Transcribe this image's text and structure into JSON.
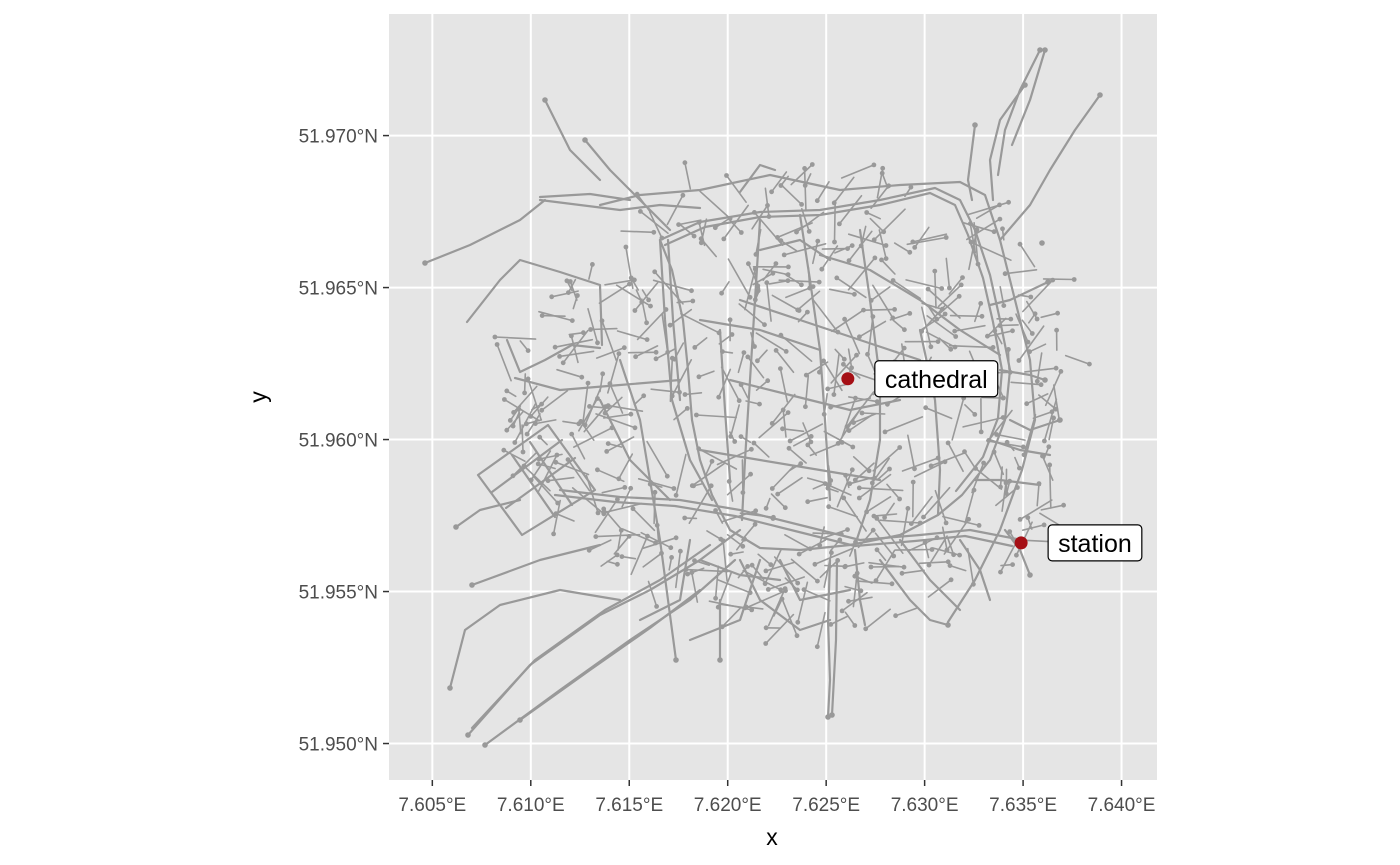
{
  "axes": {
    "x_title": "x",
    "y_title": "y",
    "x_ticks": [
      {
        "value": 7.605,
        "label": "7.605°E"
      },
      {
        "value": 7.61,
        "label": "7.610°E"
      },
      {
        "value": 7.615,
        "label": "7.615°E"
      },
      {
        "value": 7.62,
        "label": "7.620°E"
      },
      {
        "value": 7.625,
        "label": "7.625°E"
      },
      {
        "value": 7.63,
        "label": "7.630°E"
      },
      {
        "value": 7.635,
        "label": "7.635°E"
      },
      {
        "value": 7.64,
        "label": "7.640°E"
      }
    ],
    "y_ticks": [
      {
        "value": 51.95,
        "label": "51.950°N"
      },
      {
        "value": 51.955,
        "label": "51.955°N"
      },
      {
        "value": 51.96,
        "label": "51.960°N"
      },
      {
        "value": 51.965,
        "label": "51.965°N"
      },
      {
        "value": 51.97,
        "label": "51.970°N"
      }
    ],
    "xlim": [
      7.6028,
      7.6418
    ],
    "ylim": [
      51.9488,
      51.974
    ]
  },
  "colors": {
    "panel": "#e5e5e5",
    "grid": "#ffffff",
    "network": "#999999",
    "poi": "#a50f15"
  },
  "points_of_interest": [
    {
      "label": "cathedral",
      "lon": 7.6261,
      "lat": 51.962
    },
    {
      "label": "station",
      "lon": 7.6349,
      "lat": 51.9566
    }
  ],
  "chart_data": {
    "type": "map",
    "description_layer": "street network (edges and nodes)",
    "xlabel": "x",
    "ylabel": "y",
    "points": [
      {
        "name": "cathedral",
        "x": 7.6261,
        "y": 51.962
      },
      {
        "name": "station",
        "x": 7.6349,
        "y": 51.9566
      }
    ]
  }
}
